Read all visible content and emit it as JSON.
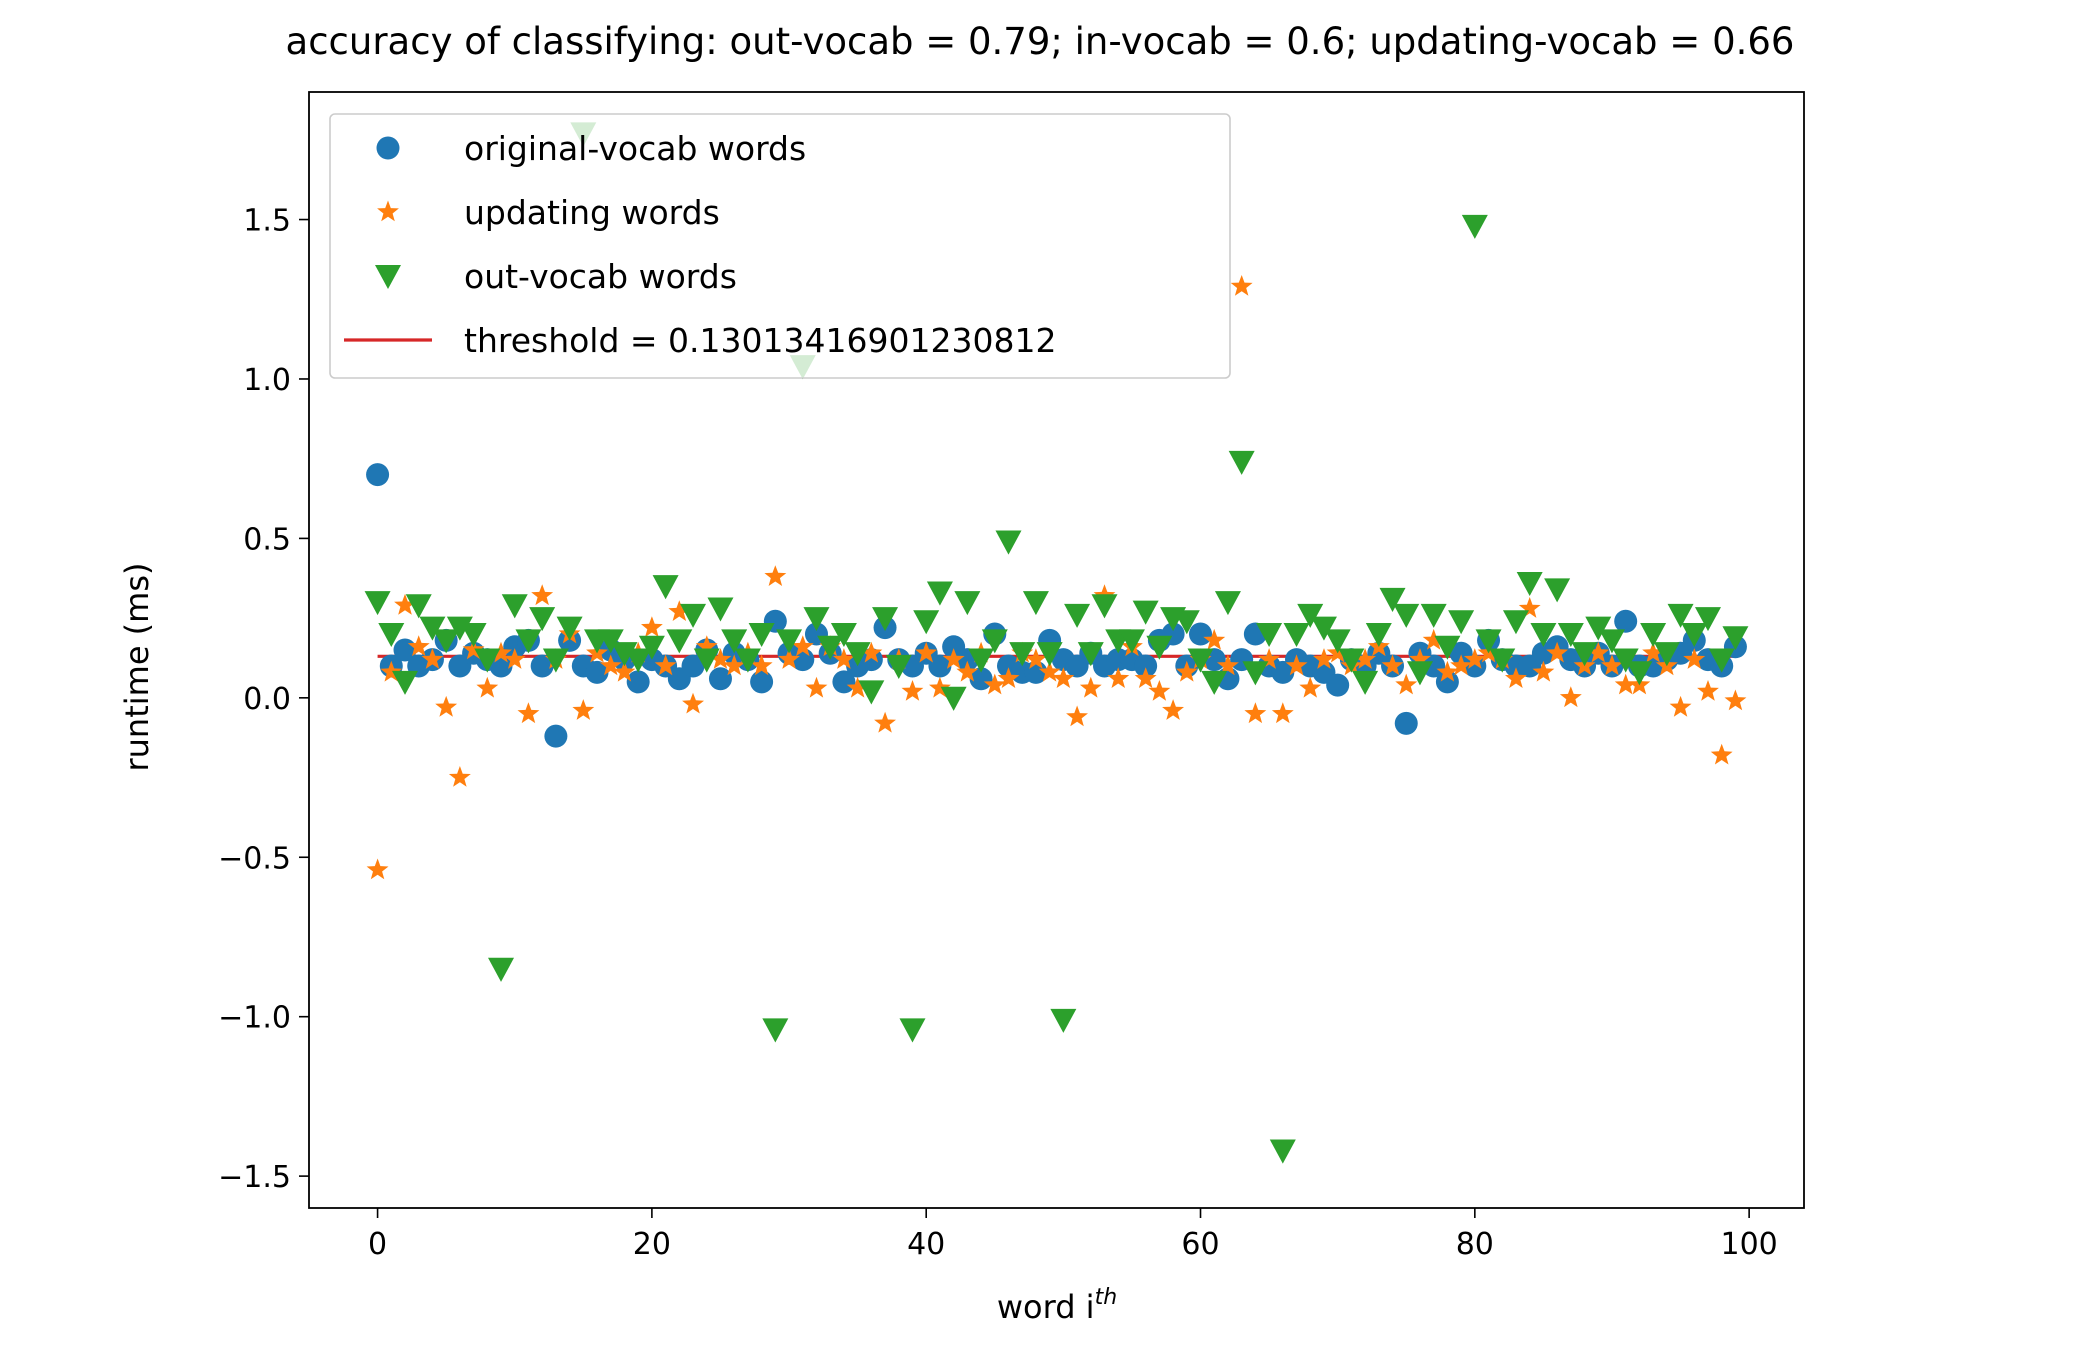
{
  "chart_data": {
    "type": "scatter",
    "title": "accuracy of classifying: out-vocab = 0.79; in-vocab = 0.6; updating-vocab = 0.66",
    "xlabel_base": "word i",
    "xlabel_sup": "th",
    "ylabel": "runtime (ms)",
    "xlim": [
      -5,
      104
    ],
    "ylim": [
      -1.6,
      1.9
    ],
    "xticks": [
      0,
      20,
      40,
      60,
      80,
      100
    ],
    "xtick_labels": [
      "0",
      "20",
      "40",
      "60",
      "80",
      "100"
    ],
    "yticks": [
      -1.5,
      -1.0,
      -0.5,
      0.0,
      0.5,
      1.0,
      1.5
    ],
    "ytick_labels": [
      "−1.5",
      "−1.0",
      "−0.5",
      "0.0",
      "0.5",
      "1.0",
      "1.5"
    ],
    "grid": false,
    "legend_position": "top-left",
    "series": [
      {
        "name": "original-vocab words",
        "marker": "circle",
        "color": "#1f77b4",
        "x": [
          0,
          1,
          2,
          3,
          4,
          5,
          6,
          7,
          8,
          9,
          10,
          11,
          12,
          13,
          14,
          15,
          16,
          17,
          18,
          19,
          20,
          21,
          22,
          23,
          24,
          25,
          26,
          27,
          28,
          29,
          30,
          31,
          32,
          33,
          34,
          35,
          36,
          37,
          38,
          39,
          40,
          41,
          42,
          43,
          44,
          45,
          46,
          47,
          48,
          49,
          50,
          51,
          52,
          53,
          54,
          55,
          56,
          57,
          58,
          59,
          60,
          61,
          62,
          63,
          64,
          65,
          66,
          67,
          68,
          69,
          70,
          71,
          72,
          73,
          74,
          75,
          76,
          77,
          78,
          79,
          80,
          81,
          82,
          83,
          84,
          85,
          86,
          87,
          88,
          89,
          90,
          91,
          92,
          93,
          94,
          95,
          96,
          97,
          98,
          99
        ],
        "y": [
          0.7,
          0.1,
          0.15,
          0.1,
          0.12,
          0.18,
          0.1,
          0.14,
          0.12,
          0.1,
          0.16,
          0.18,
          0.1,
          -0.12,
          0.18,
          0.1,
          0.08,
          0.15,
          0.12,
          0.05,
          0.12,
          0.1,
          0.06,
          0.1,
          0.15,
          0.06,
          0.14,
          0.12,
          0.05,
          0.24,
          0.14,
          0.12,
          0.2,
          0.14,
          0.05,
          0.1,
          0.12,
          0.22,
          0.12,
          0.1,
          0.14,
          0.1,
          0.16,
          0.12,
          0.06,
          0.2,
          0.1,
          0.08,
          0.08,
          0.18,
          0.12,
          0.1,
          0.14,
          0.1,
          0.12,
          0.12,
          0.1,
          0.18,
          0.2,
          0.1,
          0.2,
          0.12,
          0.06,
          0.12,
          0.2,
          0.1,
          0.08,
          0.12,
          0.1,
          0.08,
          0.04,
          0.12,
          0.1,
          0.14,
          0.1,
          -0.08,
          0.14,
          0.1,
          0.05,
          0.14,
          0.1,
          0.18,
          0.12,
          0.1,
          0.1,
          0.14,
          0.16,
          0.12,
          0.1,
          0.14,
          0.1,
          0.24,
          0.1,
          0.1,
          0.12,
          0.14,
          0.18,
          0.12,
          0.1,
          0.16
        ]
      },
      {
        "name": "updating words",
        "marker": "star",
        "color": "#ff7f0e",
        "x": [
          0,
          1,
          2,
          3,
          4,
          5,
          6,
          7,
          8,
          9,
          10,
          11,
          12,
          13,
          14,
          15,
          16,
          17,
          18,
          19,
          20,
          21,
          22,
          23,
          24,
          25,
          26,
          27,
          28,
          29,
          30,
          31,
          32,
          33,
          34,
          35,
          36,
          37,
          38,
          39,
          40,
          41,
          42,
          43,
          44,
          45,
          46,
          47,
          48,
          49,
          50,
          51,
          52,
          53,
          54,
          55,
          56,
          57,
          58,
          59,
          60,
          61,
          62,
          63,
          64,
          65,
          66,
          67,
          68,
          69,
          70,
          71,
          72,
          73,
          74,
          75,
          76,
          77,
          78,
          79,
          80,
          81,
          82,
          83,
          84,
          85,
          86,
          87,
          88,
          89,
          90,
          91,
          92,
          93,
          94,
          95,
          96,
          97,
          98,
          99
        ],
        "y": [
          -0.54,
          0.08,
          0.29,
          0.16,
          0.12,
          -0.03,
          -0.25,
          0.15,
          0.03,
          0.14,
          0.12,
          -0.05,
          0.32,
          0.12,
          0.2,
          -0.04,
          0.14,
          0.1,
          0.08,
          0.14,
          0.22,
          0.1,
          0.27,
          -0.02,
          0.16,
          0.12,
          0.1,
          0.14,
          0.1,
          0.38,
          0.12,
          0.16,
          0.03,
          0.16,
          0.12,
          0.03,
          0.14,
          -0.08,
          0.12,
          0.02,
          0.14,
          0.03,
          0.12,
          0.08,
          0.14,
          0.04,
          0.06,
          0.14,
          0.12,
          0.08,
          0.06,
          -0.06,
          0.03,
          0.32,
          0.06,
          0.16,
          0.06,
          0.02,
          -0.04,
          0.08,
          0.12,
          0.18,
          0.1,
          1.29,
          -0.05,
          0.12,
          -0.05,
          0.1,
          0.03,
          0.12,
          0.14,
          0.1,
          0.12,
          0.16,
          0.1,
          0.04,
          0.12,
          0.18,
          0.08,
          0.1,
          0.12,
          0.14,
          0.12,
          0.06,
          0.28,
          0.08,
          0.14,
          0.0,
          0.1,
          0.14,
          0.1,
          0.04,
          0.04,
          0.14,
          0.1,
          -0.03,
          0.12,
          0.02,
          -0.18,
          -0.01
        ]
      },
      {
        "name": "out-vocab words",
        "marker": "triangle-down",
        "color": "#2ca02c",
        "x": [
          0,
          1,
          2,
          3,
          4,
          5,
          6,
          7,
          8,
          9,
          10,
          11,
          12,
          13,
          14,
          15,
          16,
          17,
          18,
          19,
          20,
          21,
          22,
          23,
          24,
          25,
          26,
          27,
          28,
          29,
          30,
          31,
          32,
          33,
          34,
          35,
          36,
          37,
          38,
          39,
          40,
          41,
          42,
          43,
          44,
          45,
          46,
          47,
          48,
          49,
          50,
          51,
          52,
          53,
          54,
          55,
          56,
          57,
          58,
          59,
          60,
          61,
          62,
          63,
          64,
          65,
          66,
          67,
          68,
          69,
          70,
          71,
          72,
          73,
          74,
          75,
          76,
          77,
          78,
          79,
          80,
          81,
          82,
          83,
          84,
          85,
          86,
          87,
          88,
          89,
          90,
          91,
          92,
          93,
          94,
          95,
          96,
          97,
          98,
          99
        ],
        "y": [
          0.3,
          0.2,
          0.05,
          0.29,
          0.22,
          0.18,
          0.22,
          0.2,
          0.12,
          -0.85,
          0.29,
          0.18,
          0.25,
          0.12,
          0.22,
          1.77,
          0.18,
          0.18,
          0.14,
          0.12,
          0.16,
          0.35,
          0.18,
          0.26,
          0.12,
          0.28,
          0.18,
          0.12,
          0.2,
          -1.04,
          0.18,
          1.04,
          0.25,
          0.16,
          0.2,
          0.14,
          0.02,
          0.25,
          0.1,
          -1.04,
          0.24,
          0.33,
          0.0,
          0.3,
          0.12,
          0.18,
          0.49,
          0.14,
          0.3,
          0.14,
          -1.01,
          0.26,
          0.14,
          0.29,
          0.18,
          0.18,
          0.27,
          0.16,
          0.25,
          0.24,
          0.12,
          0.05,
          0.3,
          0.74,
          0.08,
          0.2,
          -1.42,
          0.2,
          0.26,
          0.22,
          0.18,
          0.12,
          0.05,
          0.2,
          0.31,
          0.26,
          0.08,
          0.26,
          0.16,
          0.24,
          1.48,
          0.18,
          0.12,
          0.24,
          0.36,
          0.2,
          0.34,
          0.2,
          0.14,
          0.22,
          0.18,
          0.12,
          0.08,
          0.2,
          0.14,
          0.26,
          0.2,
          0.25,
          0.12,
          0.19
        ]
      },
      {
        "name": "threshold = 0.13013416901230812",
        "marker": "line",
        "color": "#d62728",
        "x": [
          0,
          99
        ],
        "y": [
          0.13013416901230812,
          0.13013416901230812
        ]
      }
    ]
  }
}
